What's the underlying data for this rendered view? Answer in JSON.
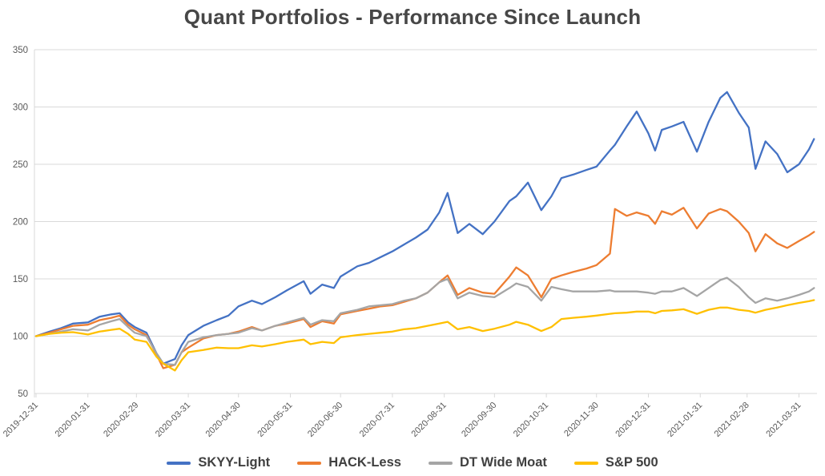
{
  "title": "Quant Portfolios - Performance Since Launch",
  "colors": {
    "series_blue": "#4472C4",
    "series_orange": "#ED7D31",
    "series_gray": "#A5A5A5",
    "series_yellow": "#FFC000",
    "gridline": "#D9D9D9",
    "axis_text": "#595959",
    "title_text": "#474747"
  },
  "chart_data": {
    "type": "line",
    "title": "Quant Portfolios - Performance Since Launch",
    "xlabel": "",
    "ylabel": "",
    "ylim": [
      50,
      350
    ],
    "yticks": [
      50,
      100,
      150,
      200,
      250,
      300,
      350
    ],
    "grid": "horizontal",
    "legend_position": "bottom",
    "baseline_value": 100,
    "x_tick_labels": [
      "2019-12-31",
      "2020-01-31",
      "2020-02-29",
      "2020-03-31",
      "2020-04-30",
      "2020-05-31",
      "2020-06-30",
      "2020-07-31",
      "2020-08-31",
      "2020-09-30",
      "2020-10-31",
      "2020-11-30",
      "2020-12-31",
      "2021-01-31",
      "2021-02-28",
      "2021-03-31"
    ],
    "x": [
      "2019-12-31",
      "2020-01-08",
      "2020-01-15",
      "2020-01-22",
      "2020-01-31",
      "2020-02-07",
      "2020-02-14",
      "2020-02-19",
      "2020-02-24",
      "2020-02-28",
      "2020-03-06",
      "2020-03-12",
      "2020-03-16",
      "2020-03-23",
      "2020-03-27",
      "2020-03-31",
      "2020-04-09",
      "2020-04-17",
      "2020-04-24",
      "2020-04-30",
      "2020-05-08",
      "2020-05-14",
      "2020-05-22",
      "2020-05-29",
      "2020-06-08",
      "2020-06-12",
      "2020-06-19",
      "2020-06-26",
      "2020-06-30",
      "2020-07-10",
      "2020-07-17",
      "2020-07-24",
      "2020-07-31",
      "2020-08-07",
      "2020-08-14",
      "2020-08-21",
      "2020-08-28",
      "2020-09-02",
      "2020-09-08",
      "2020-09-15",
      "2020-09-23",
      "2020-09-30",
      "2020-10-09",
      "2020-10-13",
      "2020-10-20",
      "2020-10-28",
      "2020-11-03",
      "2020-11-09",
      "2020-11-16",
      "2020-11-24",
      "2020-11-30",
      "2020-12-08",
      "2020-12-11",
      "2020-12-18",
      "2020-12-24",
      "2020-12-31",
      "2021-01-04",
      "2021-01-08",
      "2021-01-14",
      "2021-01-21",
      "2021-01-29",
      "2021-02-05",
      "2021-02-12",
      "2021-02-16",
      "2021-02-23",
      "2021-03-01",
      "2021-03-05",
      "2021-03-11",
      "2021-03-18",
      "2021-03-24",
      "2021-03-31",
      "2021-04-06",
      "2021-04-09"
    ],
    "series": [
      {
        "name": "SKYY-Light",
        "color": "#4472C4",
        "values": [
          100,
          104,
          107,
          111,
          112,
          117,
          119,
          120,
          112,
          108,
          103,
          85,
          76,
          80,
          92,
          101,
          109,
          114,
          118,
          126,
          131,
          128,
          134,
          140,
          148,
          137,
          145,
          142,
          152,
          161,
          164,
          169,
          174,
          180,
          186,
          193,
          208,
          225,
          190,
          198,
          189,
          200,
          218,
          222,
          234,
          210,
          222,
          238,
          241,
          245,
          248,
          262,
          267,
          283,
          296,
          277,
          262,
          280,
          283,
          287,
          261,
          287,
          308,
          313,
          295,
          282,
          246,
          270,
          259,
          243,
          250,
          263,
          272
        ]
      },
      {
        "name": "HACK-Less",
        "color": "#ED7D31",
        "values": [
          100,
          103,
          106,
          109,
          110,
          114,
          116,
          118,
          110,
          106,
          101,
          84,
          72,
          75,
          86,
          90,
          98,
          101,
          102,
          104,
          108,
          105,
          109,
          111,
          115,
          108,
          113,
          111,
          119,
          122,
          124,
          126,
          127,
          130,
          133,
          138,
          147,
          153,
          136,
          142,
          138,
          137,
          152,
          160,
          153,
          134,
          150,
          153,
          156,
          159,
          162,
          172,
          211,
          205,
          208,
          205,
          198,
          209,
          206,
          212,
          194,
          207,
          211,
          209,
          200,
          190,
          174,
          189,
          181,
          177,
          183,
          188,
          191
        ]
      },
      {
        "name": "DT Wide Moat",
        "color": "#A5A5A5",
        "values": [
          100,
          102,
          104,
          106,
          105,
          110,
          113,
          115,
          108,
          103,
          100,
          85,
          76,
          75,
          86,
          95,
          99,
          101,
          102,
          103,
          107,
          105,
          109,
          112,
          116,
          110,
          114,
          113,
          120,
          123,
          126,
          127,
          128,
          131,
          133,
          138,
          147,
          150,
          133,
          138,
          135,
          134,
          142,
          146,
          143,
          131,
          143,
          141,
          139,
          139,
          139,
          140,
          139,
          139,
          139,
          138,
          137,
          139,
          139,
          142,
          135,
          142,
          149,
          151,
          143,
          134,
          129,
          133,
          131,
          133,
          136,
          139,
          142
        ]
      },
      {
        "name": "S&P 500",
        "color": "#FFC000",
        "values": [
          100,
          102,
          103,
          103.5,
          101.5,
          104,
          105.5,
          106.5,
          102,
          97,
          95,
          82,
          76,
          70,
          79,
          86,
          88,
          90,
          89.5,
          89.5,
          92,
          91,
          93,
          95,
          97,
          93,
          95,
          94,
          99,
          101,
          102,
          103,
          104,
          106,
          107,
          109,
          111,
          112.5,
          106,
          108,
          104.5,
          106.5,
          110,
          112.5,
          110,
          104.5,
          108,
          115,
          116,
          117,
          118,
          119.5,
          120,
          120.5,
          121.5,
          121.5,
          120,
          122,
          122.5,
          123.5,
          119.5,
          123,
          125,
          125,
          123,
          122,
          120.5,
          123,
          125,
          127,
          129,
          130.5,
          131.5
        ]
      }
    ]
  }
}
